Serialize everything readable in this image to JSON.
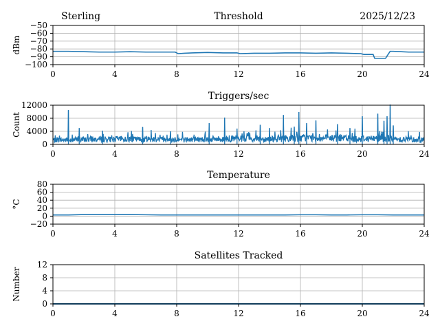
{
  "header": {
    "station": "Sterling",
    "date": "2025/12/23"
  },
  "colors": {
    "series": "#1f77b4",
    "grid": "#b0b0b0",
    "axis": "#000000"
  },
  "chart_data": [
    {
      "id": "threshold",
      "type": "line",
      "title": "Threshold",
      "ylabel": "dBm",
      "xlim": [
        0,
        24
      ],
      "ylim": [
        -100,
        -50
      ],
      "xticks": [
        0,
        4,
        8,
        12,
        16,
        20,
        24
      ],
      "yticks": [
        -100,
        -90,
        -80,
        -70,
        -60,
        -50
      ],
      "ytick_labels": [
        "−100",
        "−90",
        "−80",
        "−70",
        "−60",
        "−50"
      ],
      "grid": true,
      "series": [
        {
          "x": [
            0,
            1,
            2,
            3,
            4,
            5,
            6,
            7,
            7.9,
            8.1,
            8.5,
            9,
            10,
            11,
            11.9,
            12.1,
            13,
            14,
            15,
            16,
            17,
            18,
            19,
            19.9,
            20.1,
            20.7,
            20.8,
            21.5,
            21.6,
            21.8,
            22,
            22.5,
            23,
            24
          ],
          "y": [
            -83,
            -83,
            -83.5,
            -84,
            -84,
            -83.5,
            -84,
            -84,
            -84,
            -86,
            -85.5,
            -85,
            -84.5,
            -85,
            -85,
            -86,
            -85.5,
            -85.5,
            -85,
            -85,
            -85.5,
            -85,
            -85.5,
            -86,
            -87,
            -87,
            -92,
            -92,
            -89,
            -83,
            -83,
            -83.5,
            -84,
            -84
          ]
        }
      ]
    },
    {
      "id": "triggers",
      "type": "line",
      "title": "Triggers/sec",
      "ylabel": "Count",
      "xlim": [
        0,
        24
      ],
      "ylim": [
        0,
        12000
      ],
      "xticks": [
        0,
        4,
        8,
        12,
        16,
        20,
        24
      ],
      "yticks": [
        0,
        4000,
        8000,
        12000
      ],
      "ytick_labels": [
        "0",
        "4000",
        "8000",
        "12000"
      ],
      "grid": true,
      "baseline": [
        1600,
        1700,
        1800,
        1800,
        1900,
        1800,
        1900,
        1800,
        1700,
        1800,
        1900,
        2000,
        1900,
        2000,
        2100,
        2200,
        2300,
        2200,
        2200,
        2000,
        2100,
        2200,
        1900,
        1700,
        1800
      ],
      "spikes": [
        {
          "x": 1.0,
          "y": 10500
        },
        {
          "x": 1.7,
          "y": 5000
        },
        {
          "x": 3.2,
          "y": 4200
        },
        {
          "x": 5.8,
          "y": 5300
        },
        {
          "x": 7.6,
          "y": 4000
        },
        {
          "x": 10.1,
          "y": 6500
        },
        {
          "x": 11.1,
          "y": 8200
        },
        {
          "x": 11.9,
          "y": 4800
        },
        {
          "x": 13.4,
          "y": 6000
        },
        {
          "x": 14.0,
          "y": 5000
        },
        {
          "x": 14.9,
          "y": 9000
        },
        {
          "x": 15.6,
          "y": 5400
        },
        {
          "x": 15.9,
          "y": 9900
        },
        {
          "x": 16.4,
          "y": 6500
        },
        {
          "x": 17.0,
          "y": 7300
        },
        {
          "x": 18.4,
          "y": 6200
        },
        {
          "x": 19.2,
          "y": 5000
        },
        {
          "x": 20.0,
          "y": 8600
        },
        {
          "x": 21.0,
          "y": 9400
        },
        {
          "x": 21.4,
          "y": 7200
        },
        {
          "x": 21.6,
          "y": 8600
        },
        {
          "x": 21.8,
          "y": 12200
        },
        {
          "x": 22.0,
          "y": 5800
        }
      ]
    },
    {
      "id": "temperature",
      "type": "line",
      "title": "Temperature",
      "ylabel": "°C",
      "xlim": [
        0,
        24
      ],
      "ylim": [
        -20,
        80
      ],
      "xticks": [
        0,
        4,
        8,
        12,
        16,
        20,
        24
      ],
      "yticks": [
        -20,
        0,
        20,
        40,
        60,
        80
      ],
      "ytick_labels": [
        "−20",
        "0",
        "20",
        "40",
        "60",
        "80"
      ],
      "grid": true,
      "series": [
        {
          "x": [
            0,
            1,
            2,
            3,
            4,
            5,
            6,
            7,
            8,
            9,
            10,
            11,
            12,
            13,
            14,
            15,
            16,
            17,
            18,
            19,
            20,
            21,
            22,
            23,
            24
          ],
          "y": [
            3,
            3,
            4,
            4,
            4,
            4,
            3.5,
            3,
            3,
            3,
            3,
            3,
            3,
            3,
            3,
            3,
            3.5,
            3.5,
            3,
            3,
            3.5,
            3.5,
            3,
            3,
            3
          ]
        }
      ]
    },
    {
      "id": "satellites",
      "type": "line",
      "title": "Satellites Tracked",
      "ylabel": "Number",
      "xlim": [
        0,
        24
      ],
      "ylim": [
        0,
        12
      ],
      "xticks": [
        0,
        4,
        8,
        12,
        16,
        20,
        24
      ],
      "yticks": [
        0,
        4,
        8,
        12
      ],
      "ytick_labels": [
        "0",
        "4",
        "8",
        "12"
      ],
      "grid": true,
      "series": [
        {
          "x": [
            0,
            24
          ],
          "y": [
            0,
            0
          ]
        }
      ]
    }
  ]
}
